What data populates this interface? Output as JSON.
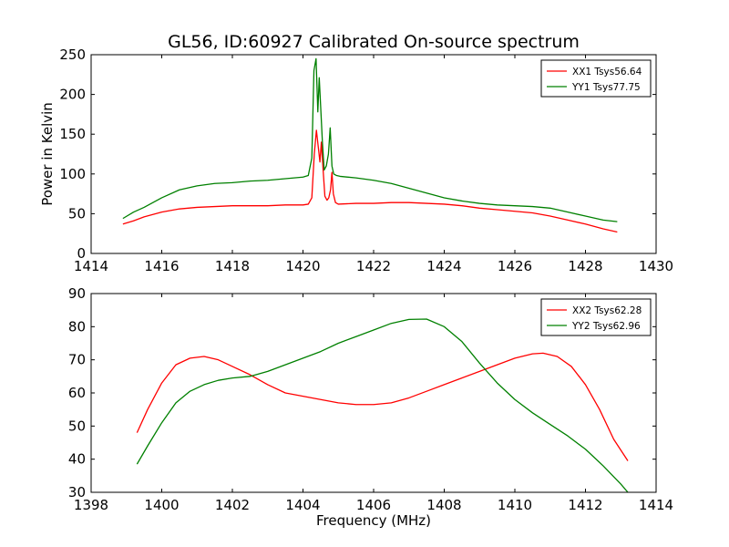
{
  "chart_data": [
    {
      "type": "line",
      "title": "GL56, ID:60927 Calibrated On-source spectrum",
      "xlabel": "",
      "ylabel": "Power in Kelvin",
      "xlim": [
        1414,
        1430
      ],
      "ylim": [
        0,
        250
      ],
      "xticks": [
        "1414",
        "1416",
        "1418",
        "1420",
        "1422",
        "1424",
        "1426",
        "1428",
        "1430"
      ],
      "yticks": [
        "0",
        "50",
        "100",
        "150",
        "200",
        "250"
      ],
      "legend_position": "top-right",
      "series": [
        {
          "name": "XX1 Tsys56.64",
          "color": "#ff0000",
          "x": [
            1414.9,
            1415.2,
            1415.5,
            1416.0,
            1416.5,
            1417.0,
            1417.5,
            1418.0,
            1418.5,
            1419.0,
            1419.5,
            1420.0,
            1420.15,
            1420.25,
            1420.32,
            1420.38,
            1420.43,
            1420.48,
            1420.52,
            1420.57,
            1420.62,
            1420.68,
            1420.73,
            1420.78,
            1420.82,
            1420.86,
            1420.92,
            1421.0,
            1421.5,
            1422.0,
            1422.5,
            1423.0,
            1423.5,
            1424.0,
            1424.5,
            1425.0,
            1425.5,
            1426.0,
            1426.5,
            1427.0,
            1427.5,
            1428.0,
            1428.5,
            1428.9
          ],
          "y": [
            37,
            41,
            46,
            52,
            56,
            58,
            59,
            60,
            60,
            60,
            61,
            61,
            62,
            70,
            125,
            155,
            135,
            115,
            140,
            105,
            72,
            67,
            70,
            80,
            102,
            75,
            64,
            62,
            63,
            63,
            64,
            64,
            63,
            62,
            60,
            57,
            55,
            53,
            51,
            47,
            42,
            37,
            31,
            27
          ]
        },
        {
          "name": "YY1 Tsys77.75",
          "color": "#008000",
          "x": [
            1414.9,
            1415.2,
            1415.5,
            1416.0,
            1416.5,
            1417.0,
            1417.5,
            1418.0,
            1418.5,
            1419.0,
            1419.5,
            1420.0,
            1420.15,
            1420.25,
            1420.31,
            1420.37,
            1420.42,
            1420.46,
            1420.5,
            1420.55,
            1420.6,
            1420.66,
            1420.72,
            1420.77,
            1420.82,
            1420.87,
            1420.95,
            1421.05,
            1421.5,
            1422.0,
            1422.5,
            1423.0,
            1423.5,
            1424.0,
            1424.5,
            1425.0,
            1425.5,
            1426.0,
            1426.5,
            1427.0,
            1427.5,
            1428.0,
            1428.5,
            1428.9
          ],
          "y": [
            44,
            52,
            58,
            70,
            80,
            85,
            88,
            89,
            91,
            92,
            94,
            96,
            98,
            120,
            230,
            245,
            178,
            221,
            185,
            140,
            105,
            110,
            125,
            158,
            110,
            100,
            98,
            97,
            95,
            92,
            88,
            82,
            76,
            70,
            66,
            63,
            61,
            60,
            59,
            57,
            52,
            47,
            42,
            40
          ]
        }
      ]
    },
    {
      "type": "line",
      "title": "",
      "xlabel": "Frequency (MHz)",
      "ylabel": "",
      "xlim": [
        1398,
        1414
      ],
      "ylim": [
        30,
        90
      ],
      "xticks": [
        "1398",
        "1400",
        "1402",
        "1404",
        "1406",
        "1408",
        "1410",
        "1412",
        "1414"
      ],
      "yticks": [
        "30",
        "40",
        "50",
        "60",
        "70",
        "80",
        "90"
      ],
      "legend_position": "top-right",
      "series": [
        {
          "name": "XX2 Tsys62.28",
          "color": "#ff0000",
          "x": [
            1399.3,
            1399.6,
            1400.0,
            1400.4,
            1400.8,
            1401.2,
            1401.6,
            1402.0,
            1402.5,
            1403.0,
            1403.5,
            1404.0,
            1404.5,
            1405.0,
            1405.5,
            1406.0,
            1406.5,
            1407.0,
            1407.5,
            1408.0,
            1408.5,
            1409.0,
            1409.5,
            1410.0,
            1410.5,
            1410.8,
            1411.2,
            1411.6,
            1412.0,
            1412.4,
            1412.8,
            1413.2
          ],
          "y": [
            48,
            55,
            63,
            68.5,
            70.5,
            71,
            70,
            68,
            65.5,
            62.5,
            60,
            59,
            58,
            57,
            56.5,
            56.5,
            57,
            58.5,
            60.5,
            62.5,
            64.5,
            66.5,
            68.5,
            70.5,
            71.8,
            72,
            71,
            68,
            62.5,
            55,
            46,
            39.5
          ]
        },
        {
          "name": "YY2 Tsys62.96",
          "color": "#008000",
          "x": [
            1399.3,
            1399.6,
            1400.0,
            1400.4,
            1400.8,
            1401.2,
            1401.6,
            1402.0,
            1402.5,
            1403.0,
            1403.5,
            1404.0,
            1404.5,
            1405.0,
            1405.5,
            1406.0,
            1406.5,
            1407.0,
            1407.5,
            1408.0,
            1408.5,
            1409.0,
            1409.5,
            1410.0,
            1410.5,
            1411.0,
            1411.5,
            1412.0,
            1412.5,
            1413.0,
            1413.2
          ],
          "y": [
            38.5,
            44,
            51,
            57,
            60.5,
            62.5,
            63.8,
            64.5,
            65,
            66.5,
            68.5,
            70.5,
            72.5,
            75,
            77,
            79,
            81,
            82.2,
            82.3,
            80,
            75.5,
            69,
            63,
            58,
            54,
            50.5,
            47,
            43,
            38,
            32.5,
            30
          ]
        }
      ]
    }
  ]
}
